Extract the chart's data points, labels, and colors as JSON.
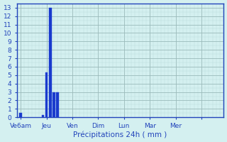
{
  "bar_positions": [
    1,
    7,
    8,
    9,
    10,
    11
  ],
  "bar_heights": [
    0.5,
    0.3,
    5.3,
    13.0,
    3.0,
    3.0
  ],
  "bar_width": 0.7,
  "bar_color": "#1a3acc",
  "bar_edge_color": "#2244dd",
  "xlim": [
    0,
    56
  ],
  "ylim": [
    0,
    13.5
  ],
  "yticks": [
    0,
    1,
    2,
    3,
    4,
    5,
    6,
    7,
    8,
    9,
    10,
    11,
    12,
    13
  ],
  "xtick_positions": [
    1,
    8,
    15,
    22,
    29,
    36,
    43,
    50
  ],
  "xtick_labels": [
    "Ve6am",
    "Jeu",
    "Ven",
    "Dim",
    "Lun",
    "Mar",
    "Mer",
    ""
  ],
  "xlabel": "Précipitations 24h ( mm )",
  "background_color": "#d4f0f0",
  "grid_minor_color": "#b8d8d8",
  "grid_major_color": "#9ababa",
  "axis_color": "#2244bb",
  "text_color": "#2244bb",
  "label_fontsize": 7.5,
  "tick_fontsize": 6.5
}
